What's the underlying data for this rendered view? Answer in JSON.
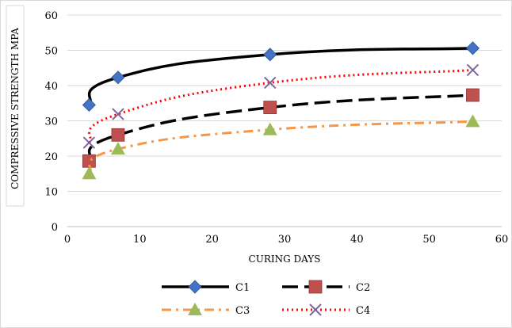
{
  "chart_data": {
    "type": "line",
    "title": "",
    "xlabel": "CURING DAYS",
    "ylabel": "COMPRESSIVE STRENGTH MPA",
    "xlim": [
      0,
      60
    ],
    "ylim": [
      0,
      60
    ],
    "xticks": [
      0,
      10,
      20,
      30,
      40,
      50,
      60
    ],
    "yticks": [
      0,
      10,
      20,
      30,
      40,
      50,
      60
    ],
    "grid": "horizontal",
    "legend_position": "bottom",
    "series": [
      {
        "name": "C1",
        "x": [
          3,
          7,
          28,
          56
        ],
        "y": [
          34.5,
          42.3,
          48.8,
          50.6
        ],
        "color": "#000000",
        "line_style": "solid",
        "marker": "diamond",
        "marker_color": "#4472c4"
      },
      {
        "name": "C2",
        "x": [
          3,
          7,
          28,
          56
        ],
        "y": [
          18.6,
          26.0,
          33.8,
          37.3
        ],
        "color": "#000000",
        "line_style": "long-dash",
        "marker": "square",
        "marker_color": "#c0504d"
      },
      {
        "name": "C3",
        "x": [
          3,
          7,
          28,
          56
        ],
        "y": [
          15.0,
          22.0,
          27.5,
          29.8
        ],
        "color": "#f79646",
        "line_style": "dash-dot",
        "marker": "triangle",
        "marker_color": "#9bbb59"
      },
      {
        "name": "C4",
        "x": [
          3,
          7,
          28,
          56
        ],
        "y": [
          23.8,
          31.9,
          40.8,
          44.4
        ],
        "color": "#ff0000",
        "line_style": "dotted",
        "marker": "x",
        "marker_color": "#8064a2"
      }
    ]
  }
}
